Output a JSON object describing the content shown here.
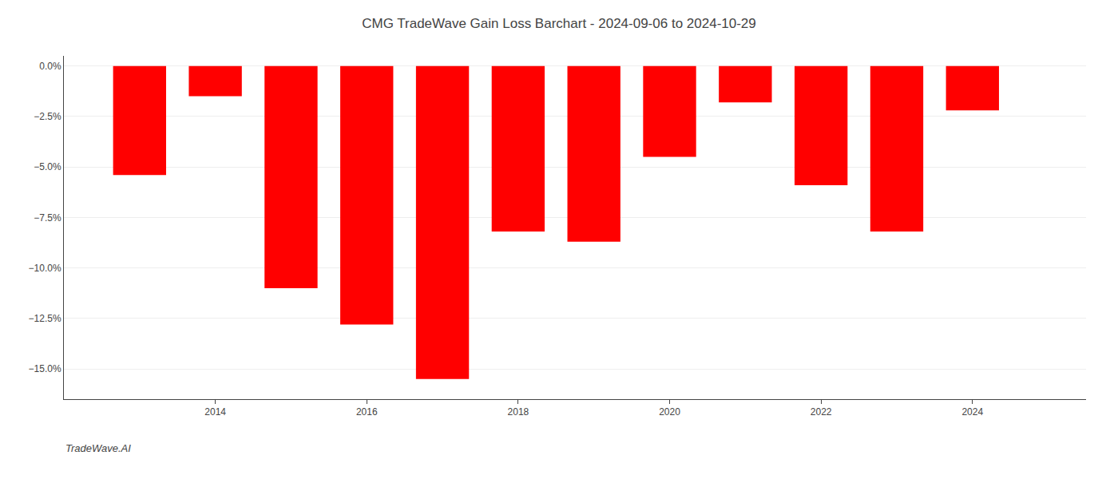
{
  "chart_data": {
    "type": "bar",
    "title": "CMG TradeWave Gain Loss Barchart - 2024-09-06 to 2024-10-29",
    "annotations": [
      "TradeWave.AI"
    ],
    "x": [
      2013,
      2014,
      2015,
      2016,
      2017,
      2018,
      2019,
      2020,
      2021,
      2022,
      2023,
      2024
    ],
    "values": [
      -5.4,
      -1.5,
      -11.0,
      -12.8,
      -15.5,
      -8.2,
      -8.7,
      -4.5,
      -1.8,
      -5.9,
      -8.2,
      -2.2
    ],
    "color": "#ff0000",
    "xlim": [
      2012.0,
      2025.5
    ],
    "xticks": [
      2014,
      2016,
      2018,
      2020,
      2022,
      2024
    ],
    "ylim": [
      -16.5,
      0.5
    ],
    "yticks": [
      {
        "value": 0.0,
        "label": "0.0%"
      },
      {
        "value": -2.5,
        "label": "−2.5%"
      },
      {
        "value": -5.0,
        "label": "−5.0%"
      },
      {
        "value": -7.5,
        "label": "−7.5%"
      },
      {
        "value": -10.0,
        "label": "−10.0%"
      },
      {
        "value": -12.5,
        "label": "−12.5%"
      },
      {
        "value": -15.0,
        "label": "−15.0%"
      }
    ],
    "grid": true
  }
}
